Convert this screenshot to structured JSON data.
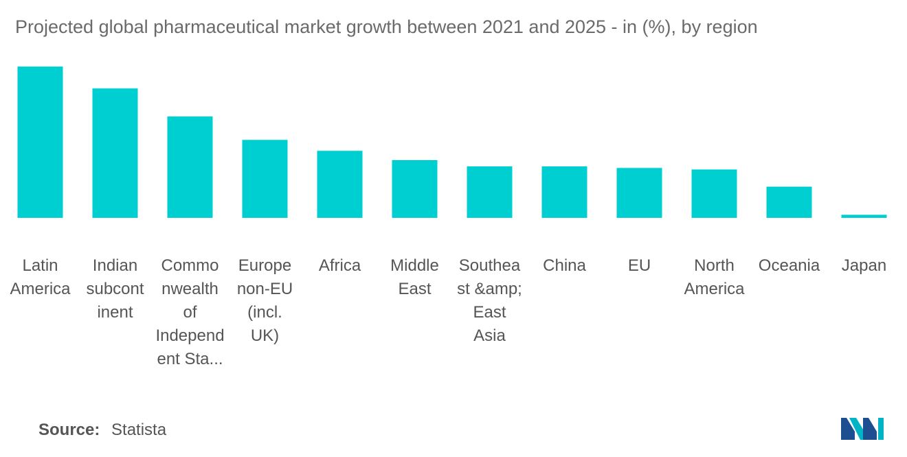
{
  "chart_data": {
    "type": "bar",
    "title": "Projected global pharmaceutical market growth between 2021 and 2025 - in (%), by region",
    "categories": [
      "Latin America",
      "Indian subcontinent",
      "Commonwealth of Independent Sta...",
      "Europe non-EU (incl. UK)",
      "Africa",
      "Middle East",
      "Southeast &amp; East Asia",
      "China",
      "EU",
      "North America",
      "Oceania",
      "Japan"
    ],
    "category_display": [
      "Latin\nAmerica",
      "Indian\nsubcont\ninent",
      "Commo\nnwealth\nof\nIndepend\nent Sta...",
      "Europe\nnon-EU\n(incl.\nUK)",
      "Africa",
      "Middle\nEast",
      "Southea\nst &amp; East\nAsia",
      "China",
      "EU",
      "North\nAmerica",
      "Oceania",
      "Japan"
    ],
    "values": [
      9.7,
      8.3,
      6.5,
      5.0,
      4.3,
      3.7,
      3.3,
      3.3,
      3.2,
      3.1,
      2.0,
      0.2
    ],
    "ylim": [
      0,
      10
    ],
    "xlabel": "",
    "ylabel": "",
    "grid": false,
    "color": "#00cfd1"
  },
  "source": {
    "label": "Source:",
    "value": "Statista"
  },
  "logo": {
    "icon": "mordor-intelligence-logo",
    "colors": [
      "#1d4e8f",
      "#00b4c6"
    ]
  }
}
